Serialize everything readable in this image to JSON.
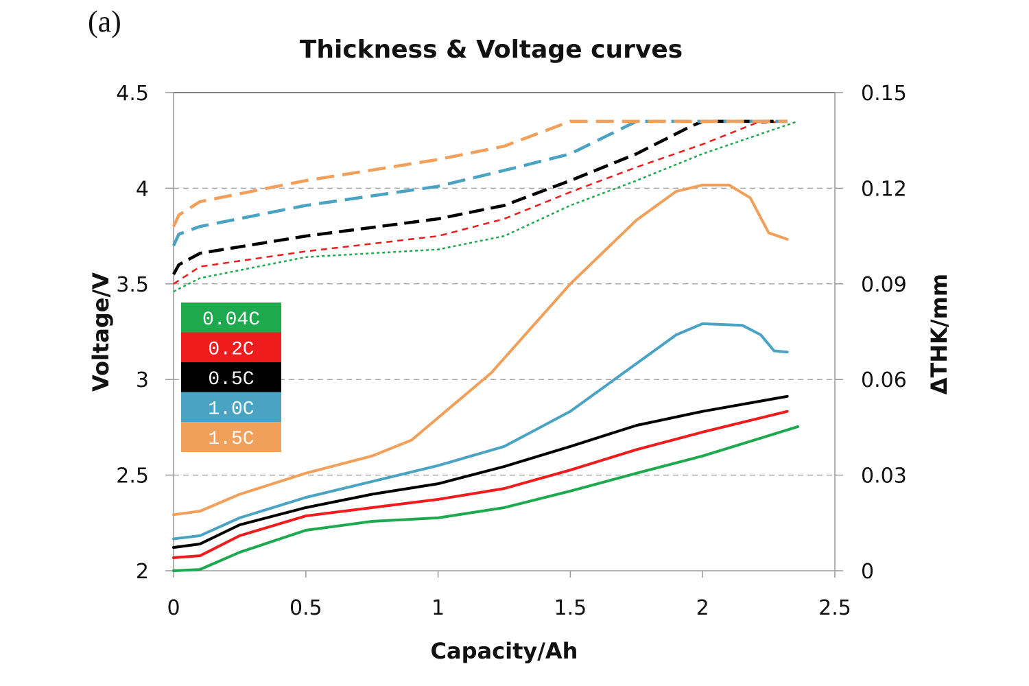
{
  "panel_label": "(a)",
  "chart_data": {
    "type": "line",
    "title": "Thickness & Voltage curves",
    "xlabel": "Capacity/Ah",
    "ylabel": "Voltage/V",
    "y2label": "ΔTHK/mm",
    "xlim": [
      0,
      2.5
    ],
    "ylim": [
      2,
      4.5
    ],
    "y2lim": [
      0,
      0.15
    ],
    "xticks": [
      "0",
      "0.5",
      "1",
      "1.5",
      "2",
      "2.5"
    ],
    "xtick_values": [
      0,
      0.5,
      1,
      1.5,
      2,
      2.5
    ],
    "yticks": [
      "2",
      "2.5",
      "3",
      "3.5",
      "4",
      "4.5"
    ],
    "ytick_values": [
      2,
      2.5,
      3,
      3.5,
      4,
      4.5
    ],
    "y2ticks": [
      "0",
      "0.03",
      "0.06",
      "0.09",
      "0.12",
      "0.15"
    ],
    "y2tick_values": [
      0,
      0.03,
      0.06,
      0.09,
      0.12,
      0.15
    ],
    "grid": true,
    "legend_placement": "left-middle",
    "legend": [
      {
        "label": "0.04C",
        "color": "#1fa94f"
      },
      {
        "label": "0.2C",
        "color": "#ee1c1c"
      },
      {
        "label": "0.5C",
        "color": "#000000"
      },
      {
        "label": "1.0C",
        "color": "#4aa3c3"
      },
      {
        "label": "1.5C",
        "color": "#f0a05a"
      }
    ],
    "voltage_series": [
      {
        "name": "0.04C",
        "x": [
          0,
          0.1,
          0.5,
          1.0,
          1.25,
          1.5,
          1.75,
          2.0,
          2.36
        ],
        "y": [
          3.46,
          3.53,
          3.64,
          3.68,
          3.75,
          3.91,
          4.04,
          4.18,
          4.35
        ]
      },
      {
        "name": "0.2C",
        "x": [
          0,
          0.1,
          0.5,
          1.0,
          1.25,
          1.5,
          1.75,
          2.0,
          2.2,
          2.32
        ],
        "y": [
          3.5,
          3.59,
          3.67,
          3.75,
          3.84,
          3.98,
          4.11,
          4.23,
          4.34,
          4.35
        ]
      },
      {
        "name": "0.5C",
        "x": [
          0,
          0.02,
          0.1,
          0.5,
          1.0,
          1.25,
          1.5,
          1.75,
          1.95,
          2.0,
          2.32
        ],
        "y": [
          3.55,
          3.6,
          3.66,
          3.75,
          3.84,
          3.91,
          4.04,
          4.18,
          4.32,
          4.35,
          4.35
        ]
      },
      {
        "name": "1.0C",
        "x": [
          0,
          0.02,
          0.1,
          0.5,
          1.0,
          1.3,
          1.5,
          1.75,
          2.32
        ],
        "y": [
          3.7,
          3.76,
          3.8,
          3.91,
          4.01,
          4.11,
          4.18,
          4.35,
          4.35
        ]
      },
      {
        "name": "1.5C",
        "x": [
          0,
          0.02,
          0.1,
          0.5,
          1.0,
          1.25,
          1.5,
          2.32
        ],
        "y": [
          3.8,
          3.86,
          3.93,
          4.04,
          4.15,
          4.22,
          4.35,
          4.35
        ]
      }
    ],
    "thickness_series": [
      {
        "name": "0.04C",
        "x": [
          0,
          0.1,
          0.25,
          0.5,
          0.75,
          1.0,
          1.25,
          1.5,
          1.75,
          2.0,
          2.36
        ],
        "y": [
          0,
          0.0004,
          0.0058,
          0.0127,
          0.0155,
          0.0166,
          0.0198,
          0.025,
          0.0306,
          0.036,
          0.0452
        ]
      },
      {
        "name": "0.2C",
        "x": [
          0,
          0.1,
          0.25,
          0.5,
          0.75,
          1.0,
          1.25,
          1.5,
          1.75,
          2.0,
          2.32
        ],
        "y": [
          0.0041,
          0.0047,
          0.011,
          0.0172,
          0.0198,
          0.0224,
          0.0258,
          0.0316,
          0.038,
          0.0435,
          0.05
        ]
      },
      {
        "name": "0.5C",
        "x": [
          0,
          0.1,
          0.25,
          0.5,
          0.75,
          1.0,
          1.25,
          1.5,
          1.75,
          2.0,
          2.32
        ],
        "y": [
          0.0073,
          0.0084,
          0.0144,
          0.0198,
          0.024,
          0.0273,
          0.0327,
          0.039,
          0.0456,
          0.05,
          0.0547
        ]
      },
      {
        "name": "1.0C",
        "x": [
          0,
          0.1,
          0.25,
          0.5,
          0.75,
          1.0,
          1.25,
          1.5,
          1.7,
          1.9,
          2.0,
          2.15,
          2.22,
          2.27,
          2.32
        ],
        "y": [
          0.01,
          0.011,
          0.0166,
          0.023,
          0.028,
          0.033,
          0.039,
          0.05,
          0.062,
          0.074,
          0.0775,
          0.077,
          0.074,
          0.069,
          0.0686
        ]
      },
      {
        "name": "1.5C",
        "x": [
          0,
          0.1,
          0.25,
          0.5,
          0.75,
          0.9,
          1.0,
          1.2,
          1.5,
          1.75,
          1.9,
          2.0,
          2.1,
          2.18,
          2.25,
          2.32
        ],
        "y": [
          0.0176,
          0.0187,
          0.024,
          0.0306,
          0.036,
          0.041,
          0.048,
          0.062,
          0.09,
          0.11,
          0.119,
          0.121,
          0.121,
          0.117,
          0.106,
          0.104
        ]
      }
    ]
  }
}
